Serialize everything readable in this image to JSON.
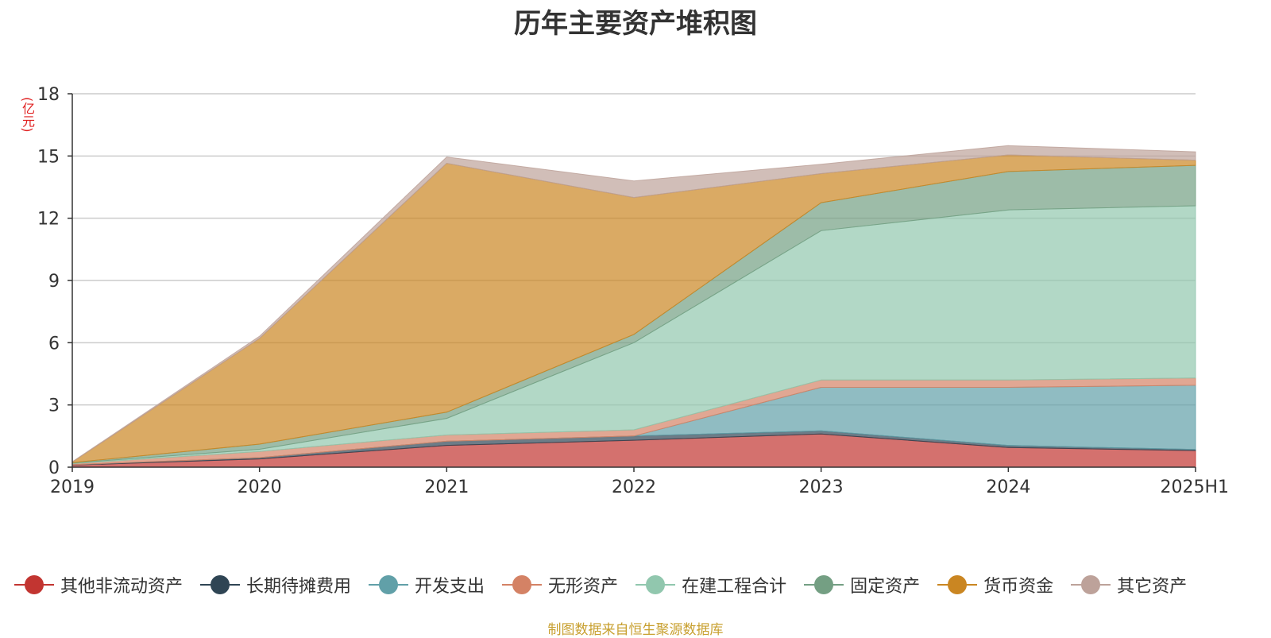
{
  "chart_data": {
    "type": "area",
    "stacked": true,
    "title": "历年主要资产堆积图",
    "y_unit_label": "(亿元)",
    "categories": [
      "2019",
      "2020",
      "2021",
      "2022",
      "2023",
      "2024",
      "2025H1"
    ],
    "ylim": [
      0,
      18
    ],
    "yticks": [
      "0",
      "3",
      "6",
      "9",
      "12",
      "15",
      "18"
    ],
    "grid": true,
    "legend_position": "bottom",
    "series": [
      {
        "name": "其他非流动资产",
        "color": "#c23531",
        "values": [
          0.1,
          0.4,
          1.05,
          1.3,
          1.6,
          0.95,
          0.8
        ]
      },
      {
        "name": "长期待摊费用",
        "color": "#2f4554",
        "values": [
          0.02,
          0.06,
          0.2,
          0.2,
          0.15,
          0.1,
          0.05
        ]
      },
      {
        "name": "开发支出",
        "color": "#61a0a8",
        "values": [
          0,
          0,
          0,
          0,
          2.1,
          2.8,
          3.1
        ]
      },
      {
        "name": "无形资产",
        "color": "#d48265",
        "values": [
          0.05,
          0.3,
          0.3,
          0.3,
          0.35,
          0.35,
          0.35
        ]
      },
      {
        "name": "在建工程合计",
        "color": "#91c7ae",
        "values": [
          0.03,
          0.1,
          0.8,
          4.2,
          7.2,
          8.2,
          8.3
        ]
      },
      {
        "name": "固定资产",
        "color": "#749f83",
        "values": [
          0.02,
          0.25,
          0.3,
          0.4,
          1.35,
          1.85,
          1.95
        ]
      },
      {
        "name": "货币资金",
        "color": "#ca8622",
        "values": [
          0.03,
          5.1,
          12.0,
          6.6,
          1.4,
          0.8,
          0.25
        ]
      },
      {
        "name": "其它资产",
        "color": "#bda29a",
        "values": [
          0.01,
          0.1,
          0.3,
          0.8,
          0.45,
          0.45,
          0.4
        ]
      }
    ]
  },
  "source_note": "制图数据来自恒生聚源数据库"
}
